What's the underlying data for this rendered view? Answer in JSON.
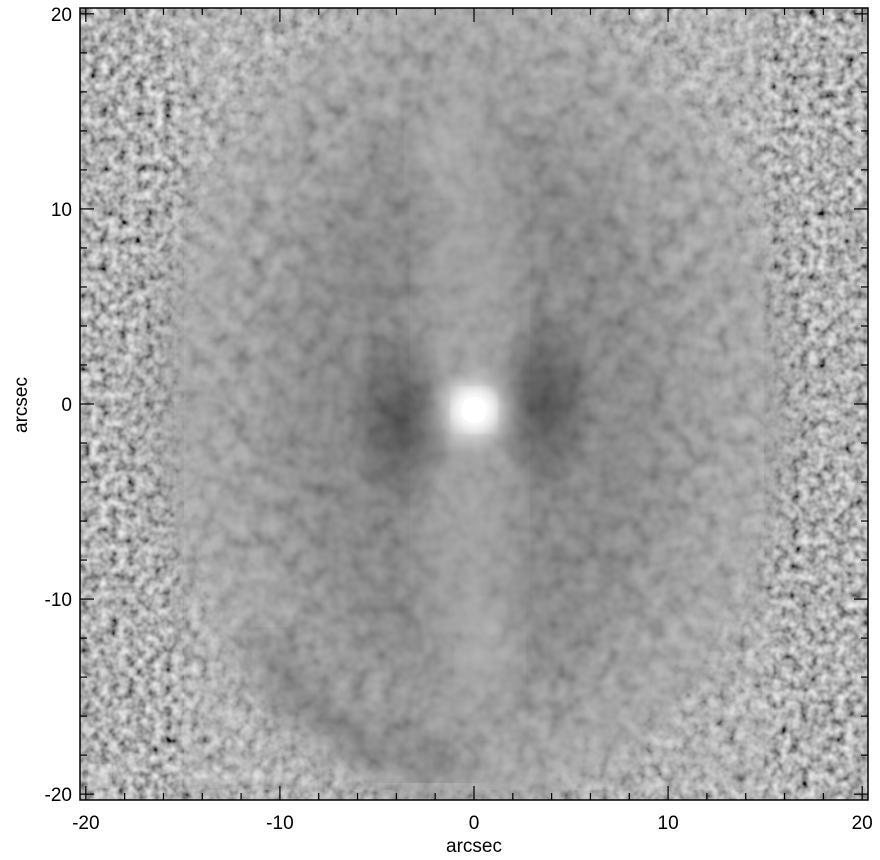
{
  "figure": {
    "title": "",
    "xlabel": "arcsec",
    "ylabel": "arcsec",
    "xlim": [
      -20.3,
      20.3
    ],
    "ylim": [
      -20.3,
      20.3
    ],
    "x_ticks": [
      {
        "value": -20,
        "label": "-20"
      },
      {
        "value": -10,
        "label": "-10"
      },
      {
        "value": 0,
        "label": "0"
      },
      {
        "value": 10,
        "label": "10"
      },
      {
        "value": 20,
        "label": "20"
      }
    ],
    "y_ticks": [
      {
        "value": 20,
        "label": "20"
      },
      {
        "value": 10,
        "label": "10"
      },
      {
        "value": 0,
        "label": "0"
      },
      {
        "value": -10,
        "label": "-10"
      },
      {
        "value": -20,
        "label": "-20"
      }
    ],
    "colormap": "grayscale",
    "colors": {
      "background": "#7a7a7a",
      "nebula": "#9a9a9a",
      "core": "#ffffff",
      "axes": "#000000"
    }
  }
}
